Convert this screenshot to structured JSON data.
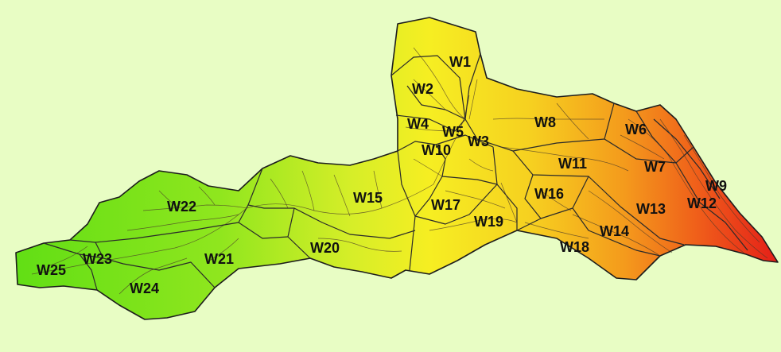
{
  "map": {
    "background_color": "#e8fdc4",
    "gradient": [
      "#6fe21a",
      "#c8ec2a",
      "#f5ec1e",
      "#f4b21c",
      "#e8351b"
    ],
    "watersheds": [
      {
        "id": "W1"
      },
      {
        "id": "W2"
      },
      {
        "id": "W3"
      },
      {
        "id": "W4"
      },
      {
        "id": "W5"
      },
      {
        "id": "W6"
      },
      {
        "id": "W7"
      },
      {
        "id": "W8"
      },
      {
        "id": "W9"
      },
      {
        "id": "W10"
      },
      {
        "id": "W11"
      },
      {
        "id": "W12"
      },
      {
        "id": "W13"
      },
      {
        "id": "W14"
      },
      {
        "id": "W15"
      },
      {
        "id": "W16"
      },
      {
        "id": "W17"
      },
      {
        "id": "W18"
      },
      {
        "id": "W19"
      },
      {
        "id": "W20"
      },
      {
        "id": "W21"
      },
      {
        "id": "W22"
      },
      {
        "id": "W23"
      },
      {
        "id": "W24"
      },
      {
        "id": "W25"
      }
    ]
  }
}
